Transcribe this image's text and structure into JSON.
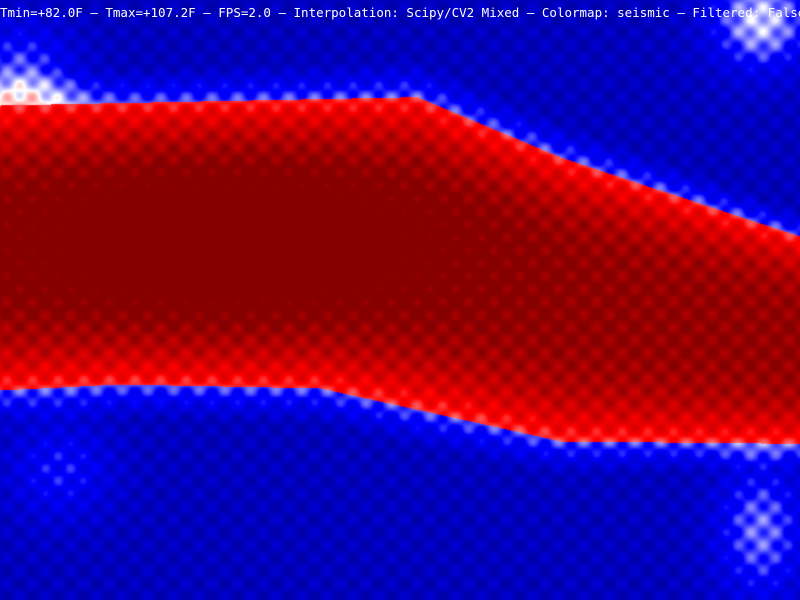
{
  "overlay": {
    "tmin": "Tmin=+82.0F",
    "tmax": "Tmax=+107.2F",
    "fps": "FPS=2.0",
    "interpolation": "Interpolation: Scipy/CV2 Mixed",
    "colormap": "Colormap: seismic",
    "filtered": "Filtered: False",
    "separator": " — "
  },
  "thermal": {
    "colormap": "seismic",
    "colors": {
      "cold": "#0000c8",
      "neutral": "#ffffff",
      "hot": "#c80000",
      "hottest": "#800000"
    }
  }
}
